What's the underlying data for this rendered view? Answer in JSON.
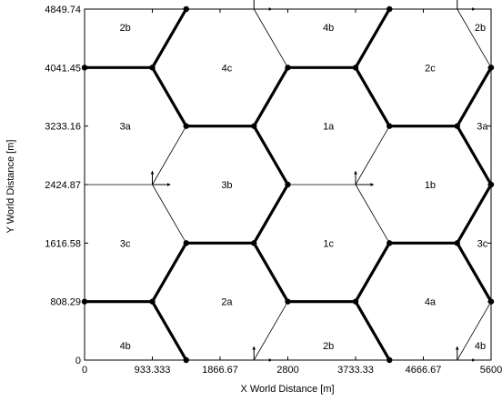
{
  "chart_data": {
    "type": "scatter",
    "xlabel": "X World Distance [m]",
    "ylabel": "Y World Distance [m]",
    "xlim": [
      0,
      5600
    ],
    "ylim": [
      0,
      4849.74
    ],
    "x_ticks": [
      {
        "value": 0,
        "label": "0"
      },
      {
        "value": 933.333,
        "label": "933.333"
      },
      {
        "value": 1866.67,
        "label": "1866.67"
      },
      {
        "value": 2800,
        "label": "2800"
      },
      {
        "value": 3733.33,
        "label": "3733.33"
      },
      {
        "value": 4666.67,
        "label": "4666.67"
      },
      {
        "value": 5600,
        "label": "5600"
      }
    ],
    "y_ticks": [
      {
        "value": 0,
        "label": "0"
      },
      {
        "value": 808.29,
        "label": "808.29"
      },
      {
        "value": 1616.58,
        "label": "1616.58"
      },
      {
        "value": 2424.87,
        "label": "2424.87"
      },
      {
        "value": 3233.16,
        "label": "3233.16"
      },
      {
        "value": 4041.45,
        "label": "4041.45"
      },
      {
        "value": 4849.74,
        "label": "4849.74"
      }
    ],
    "cell_labels": [
      {
        "text": "2b",
        "x": 560,
        "y": 4600
      },
      {
        "text": "4b",
        "x": 3360,
        "y": 4600
      },
      {
        "text": "2b",
        "x": 5450,
        "y": 4600
      },
      {
        "text": "4c",
        "x": 1960,
        "y": 4041.45
      },
      {
        "text": "2c",
        "x": 4760,
        "y": 4041.45
      },
      {
        "text": "3a",
        "x": 560,
        "y": 3233.16
      },
      {
        "text": "1a",
        "x": 3360,
        "y": 3233.16
      },
      {
        "text": "3a",
        "x": 5480,
        "y": 3233.16
      },
      {
        "text": "3b",
        "x": 1960,
        "y": 2424.87
      },
      {
        "text": "1b",
        "x": 4760,
        "y": 2424.87
      },
      {
        "text": "3c",
        "x": 560,
        "y": 1616.58
      },
      {
        "text": "1c",
        "x": 3360,
        "y": 1616.58
      },
      {
        "text": "3c",
        "x": 5480,
        "y": 1616.58
      },
      {
        "text": "2a",
        "x": 1960,
        "y": 808.29
      },
      {
        "text": "4a",
        "x": 4760,
        "y": 808.29
      },
      {
        "text": "4b",
        "x": 560,
        "y": 200
      },
      {
        "text": "2b",
        "x": 3360,
        "y": 200
      },
      {
        "text": "4b",
        "x": 5450,
        "y": 200
      }
    ],
    "thick_segments": [
      [
        [
          1400,
          4849.74
        ],
        [
          933.333,
          4041.45
        ]
      ],
      [
        [
          0,
          4041.45
        ],
        [
          933.333,
          4041.45
        ]
      ],
      [
        [
          933.333,
          4041.45
        ],
        [
          1400,
          3233.16
        ]
      ],
      [
        [
          1400,
          3233.16
        ],
        [
          2333.33,
          3233.16
        ]
      ],
      [
        [
          2333.33,
          3233.16
        ],
        [
          2800,
          4041.45
        ]
      ],
      [
        [
          2800,
          4041.45
        ],
        [
          3733.33,
          4041.45
        ]
      ],
      [
        [
          3733.33,
          4041.45
        ],
        [
          4200,
          4849.74
        ]
      ],
      [
        [
          3733.33,
          4041.45
        ],
        [
          4200,
          3233.16
        ]
      ],
      [
        [
          4200,
          3233.16
        ],
        [
          5133.33,
          3233.16
        ]
      ],
      [
        [
          5133.33,
          3233.16
        ],
        [
          5600,
          4041.45
        ]
      ],
      [
        [
          2333.33,
          3233.16
        ],
        [
          2800,
          2424.87
        ]
      ],
      [
        [
          2800,
          2424.87
        ],
        [
          2333.33,
          1616.58
        ]
      ],
      [
        [
          5133.33,
          3233.16
        ],
        [
          5600,
          2424.87
        ]
      ],
      [
        [
          5600,
          2424.87
        ],
        [
          5133.33,
          1616.58
        ]
      ],
      [
        [
          1400,
          1616.58
        ],
        [
          2333.33,
          1616.58
        ]
      ],
      [
        [
          2333.33,
          1616.58
        ],
        [
          2800,
          808.29
        ]
      ],
      [
        [
          2800,
          808.29
        ],
        [
          3733.33,
          808.29
        ]
      ],
      [
        [
          3733.33,
          808.29
        ],
        [
          4200,
          1616.58
        ]
      ],
      [
        [
          4200,
          1616.58
        ],
        [
          5133.33,
          1616.58
        ]
      ],
      [
        [
          5133.33,
          1616.58
        ],
        [
          5600,
          808.29
        ]
      ],
      [
        [
          1400,
          1616.58
        ],
        [
          933.333,
          808.29
        ]
      ],
      [
        [
          0,
          808.29
        ],
        [
          933.333,
          808.29
        ]
      ],
      [
        [
          933.333,
          808.29
        ],
        [
          1400,
          0
        ]
      ],
      [
        [
          3733.33,
          808.29
        ],
        [
          4200,
          0
        ]
      ]
    ],
    "thin_segments": [
      [
        [
          2333.33,
          4849.74
        ],
        [
          2800,
          4041.45
        ]
      ],
      [
        [
          5133.33,
          4849.74
        ],
        [
          5600,
          4041.45
        ]
      ],
      [
        [
          1400,
          3233.16
        ],
        [
          933.333,
          2424.87
        ]
      ],
      [
        [
          933.333,
          2424.87
        ],
        [
          1400,
          1616.58
        ]
      ],
      [
        [
          0,
          2424.87
        ],
        [
          933.333,
          2424.87
        ]
      ],
      [
        [
          4200,
          3233.16
        ],
        [
          3733.33,
          2424.87
        ]
      ],
      [
        [
          3733.33,
          2424.87
        ],
        [
          4200,
          1616.58
        ]
      ],
      [
        [
          2800,
          2424.87
        ],
        [
          3733.33,
          2424.87
        ]
      ],
      [
        [
          2800,
          808.29
        ],
        [
          2333.33,
          0
        ]
      ],
      [
        [
          5600,
          808.29
        ],
        [
          5133.33,
          0
        ]
      ]
    ],
    "nodes": [
      [
        1400,
        4849.74
      ],
      [
        4200,
        4849.74
      ],
      [
        0,
        4041.45
      ],
      [
        933.333,
        4041.45
      ],
      [
        2800,
        4041.45
      ],
      [
        3733.33,
        4041.45
      ],
      [
        5600,
        4041.45
      ],
      [
        1400,
        3233.16
      ],
      [
        2333.33,
        3233.16
      ],
      [
        4200,
        3233.16
      ],
      [
        5133.33,
        3233.16
      ],
      [
        2800,
        2424.87
      ],
      [
        5600,
        2424.87
      ],
      [
        1400,
        1616.58
      ],
      [
        2333.33,
        1616.58
      ],
      [
        4200,
        1616.58
      ],
      [
        5133.33,
        1616.58
      ],
      [
        0,
        808.29
      ],
      [
        933.333,
        808.29
      ],
      [
        2800,
        808.29
      ],
      [
        3733.33,
        808.29
      ],
      [
        5600,
        808.29
      ],
      [
        1400,
        0
      ],
      [
        4200,
        0
      ]
    ],
    "arrow_origins": [
      [
        2333.33,
        4849.74
      ],
      [
        5133.33,
        4849.74
      ],
      [
        933.333,
        2424.87
      ],
      [
        3733.33,
        2424.87
      ],
      [
        2333.33,
        0
      ],
      [
        5133.33,
        0
      ]
    ]
  }
}
